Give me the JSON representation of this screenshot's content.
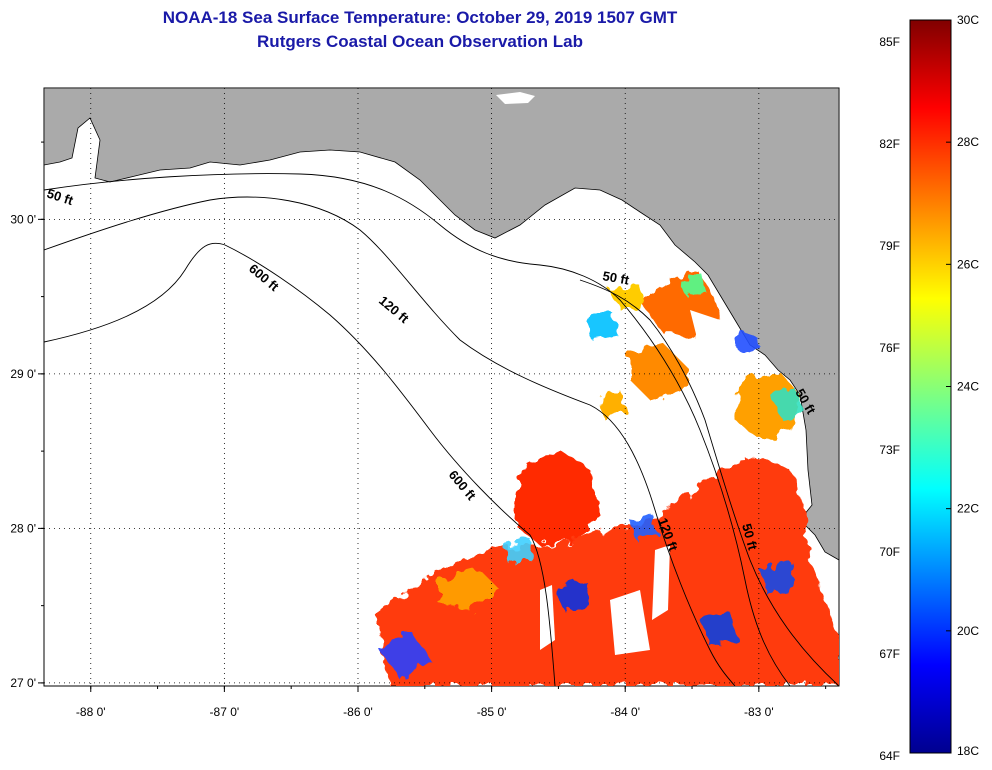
{
  "title": {
    "line1": "NOAA-18 Sea Surface Temperature:  October 29, 2019 1507 GMT",
    "line2": "Rutgers Coastal Ocean Observation Lab"
  },
  "map": {
    "lon_range": [
      -88.35,
      -82.4
    ],
    "lat_range": [
      26.98,
      30.85
    ],
    "lon_ticks": [
      {
        "value": -88,
        "label": "-88 0'"
      },
      {
        "value": -87,
        "label": "-87 0'"
      },
      {
        "value": -86,
        "label": "-86 0'"
      },
      {
        "value": -85,
        "label": "-85 0'"
      },
      {
        "value": -84,
        "label": "-84 0'"
      },
      {
        "value": -83,
        "label": "-83 0'"
      }
    ],
    "lat_ticks": [
      {
        "value": 30,
        "label": "30 0'"
      },
      {
        "value": 29,
        "label": "29 0'"
      },
      {
        "value": 28,
        "label": "28 0'"
      },
      {
        "value": 27,
        "label": "27 0'"
      }
    ],
    "land_color": "#aaaaaa",
    "ocean_color": "#ffffff",
    "grid": true,
    "contour_labels": [
      "50 ft",
      "600 ft",
      "120 ft",
      "50 ft",
      "600 ft",
      "120 ft",
      "50 ft",
      "50 ft"
    ]
  },
  "colorbar": {
    "celsius_range": [
      18,
      30
    ],
    "celsius_labels": [
      "30C",
      "28C",
      "26C",
      "24C",
      "22C",
      "20C",
      "18C"
    ],
    "fahrenheit_labels": [
      "85F",
      "82F",
      "79F",
      "76F",
      "73F",
      "70F",
      "67F",
      "64F"
    ]
  }
}
